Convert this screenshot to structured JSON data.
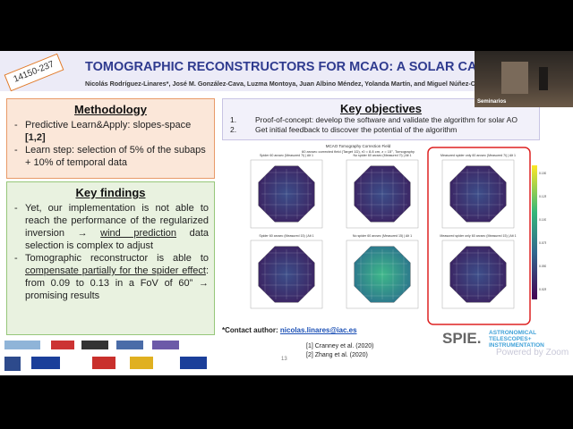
{
  "header": {
    "tag": "14150-237",
    "title": "TOMOGRAPHIC RECONSTRUCTORS FOR MCAO: A SOLAR CASE STUDY",
    "authors": "Nicolás Rodríguez-Linares*, José M. González-Cava, Luzma Montoya, Juan Albino Méndez, Yolanda Martín, and Miguel Núñez-Cagigal"
  },
  "methodology": {
    "title": "Methodology",
    "bullets": [
      [
        "Predictive Learn&Apply: slopes-space ",
        "[1,2]"
      ],
      [
        "Learn step: selection of 5% of the subaps + 10% of temporal data"
      ]
    ]
  },
  "findings": {
    "title": "Key findings",
    "bullets": [
      [
        "Yet, our implementation is not able to reach the performance of the regularized inversion → ",
        "wind prediction",
        " data selection is complex to adjust"
      ],
      [
        "Tomographic reconstructor is able to ",
        "compensate partially for the spider effect",
        ": from 0.09 to 0.13 in a FoV of 60” → promising results"
      ]
    ]
  },
  "objectives": {
    "title": "Key objectives",
    "items": [
      [
        "1.",
        "Proof-of-concept: develop the software and validate the algorithm for solar AO"
      ],
      [
        "2.",
        "Get initial feedback to discover the potential of the algorithm"
      ]
    ]
  },
  "figure": {
    "title": "MCAO Tomography Correction Field",
    "subtitle": "60 arcsec corrected field (Target 1D), r0 = 8.8 cm, z = 15°, Tomography",
    "panels": [
      "Spider 60 arcsec (Measured 7i) | Alt 1",
      "No spider 60 arcsec (Measured 7i) | Alt 1",
      "Measured spider only 60 arcsec (Measured 7i) | Alt 1",
      "Spider 60 arcsec (Measured 15) | Alt 1",
      "No spider 60 arcsec (Measured 15) | Alt 1",
      "Measured spider only 60 arcsec (Measured 15) | Alt 1"
    ],
    "colorbar": [
      "0.1500",
      "0.1250",
      "0.1000",
      "0.0750",
      "0.0500",
      "0.0250"
    ]
  },
  "contact": {
    "label": "*Contact author: ",
    "email": "nicolas.linares@iac.es"
  },
  "references": [
    "[1] Cranney et al. (2020)",
    "[2] Zhang et al. (2020)"
  ],
  "page_number": "13",
  "sponsor": {
    "brand": "SPIE.",
    "line1": "ASTRONOMICAL",
    "line2": "TELESCOPES+",
    "line3": "INSTRUMENTATION",
    "zoom": "Powered by Zoom"
  },
  "webcam": {
    "label": "Seminarios"
  }
}
